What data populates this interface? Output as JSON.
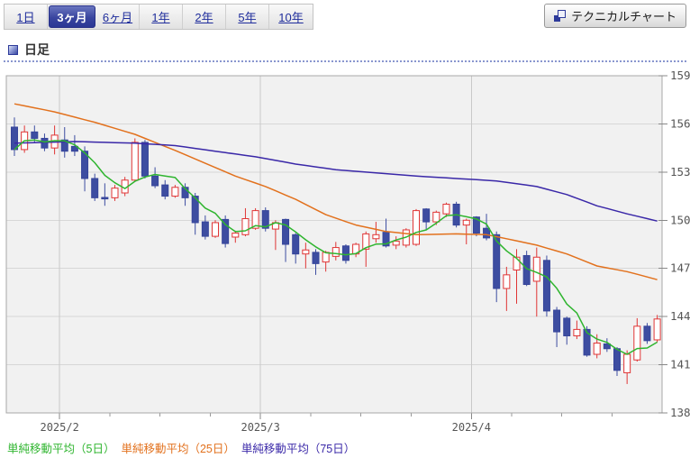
{
  "tabs": [
    {
      "label": "1日",
      "selected": false
    },
    {
      "label": "3ヶ月",
      "selected": true
    },
    {
      "label": "6ヶ月",
      "selected": false
    },
    {
      "label": "1年",
      "selected": false
    },
    {
      "label": "2年",
      "selected": false
    },
    {
      "label": "5年",
      "selected": false
    },
    {
      "label": "10年",
      "selected": false
    }
  ],
  "toolbar": {
    "technical_button_label": "テクニカルチャート"
  },
  "section": {
    "title": "日足"
  },
  "chart_data": {
    "type": "candlestick",
    "title": "",
    "ylim": [
      138,
      159
    ],
    "y_ticks": [
      138,
      141,
      144,
      147,
      150,
      153,
      156,
      159
    ],
    "grid": true,
    "x_axis_months": [
      {
        "label": "2025/2",
        "boundary_index": 5
      },
      {
        "label": "2025/3",
        "boundary_index": 25
      },
      {
        "label": "2025/4",
        "boundary_index": 46
      }
    ],
    "minor_tick_every": 5,
    "candles_ohlc": [
      [
        155.8,
        156.4,
        154.0,
        154.4
      ],
      [
        154.4,
        155.9,
        154.2,
        155.5
      ],
      [
        155.5,
        155.9,
        154.8,
        155.1
      ],
      [
        155.1,
        155.4,
        154.3,
        154.5
      ],
      [
        154.5,
        155.9,
        154.1,
        155.3
      ],
      [
        155.0,
        155.8,
        153.9,
        154.3
      ],
      [
        154.6,
        155.3,
        154.0,
        154.3
      ],
      [
        154.3,
        154.6,
        151.8,
        152.6
      ],
      [
        152.6,
        152.9,
        151.2,
        151.4
      ],
      [
        151.42,
        152.3,
        150.9,
        151.38
      ],
      [
        151.4,
        152.2,
        151.2,
        152.0
      ],
      [
        151.7,
        152.7,
        151.5,
        152.5
      ],
      [
        152.5,
        155.1,
        152.4,
        154.85
      ],
      [
        154.85,
        155.0,
        152.6,
        152.75
      ],
      [
        152.75,
        153.3,
        152.0,
        152.15
      ],
      [
        152.2,
        152.5,
        151.3,
        151.5
      ],
      [
        151.5,
        152.2,
        151.4,
        152.05
      ],
      [
        152.05,
        152.3,
        150.9,
        151.4
      ],
      [
        151.5,
        151.7,
        149.1,
        149.85
      ],
      [
        149.9,
        150.3,
        148.8,
        149.0
      ],
      [
        149.0,
        150.0,
        148.9,
        149.85
      ],
      [
        150.05,
        150.3,
        148.3,
        148.55
      ],
      [
        148.95,
        149.35,
        148.6,
        149.2
      ],
      [
        149.1,
        150.75,
        149.0,
        150.1
      ],
      [
        149.5,
        150.75,
        149.4,
        150.6
      ],
      [
        150.6,
        150.8,
        149.3,
        149.5
      ],
      [
        149.45,
        150.0,
        148.15,
        149.85
      ],
      [
        150.05,
        150.1,
        147.4,
        148.5
      ],
      [
        149.1,
        149.2,
        147.3,
        147.9
      ],
      [
        147.9,
        148.6,
        147.0,
        148.15
      ],
      [
        148.0,
        148.2,
        146.6,
        147.3
      ],
      [
        147.4,
        148.1,
        146.8,
        148.0
      ],
      [
        147.75,
        148.65,
        147.5,
        148.3
      ],
      [
        148.4,
        148.5,
        147.3,
        147.5
      ],
      [
        147.9,
        148.6,
        147.7,
        148.5
      ],
      [
        148.2,
        149.3,
        147.1,
        149.15
      ],
      [
        148.85,
        149.9,
        148.6,
        149.1
      ],
      [
        149.25,
        150.1,
        148.3,
        148.4
      ],
      [
        148.45,
        149.0,
        148.2,
        148.7
      ],
      [
        148.45,
        149.5,
        148.3,
        149.4
      ],
      [
        148.5,
        150.7,
        148.4,
        150.6
      ],
      [
        150.7,
        150.75,
        149.4,
        149.9
      ],
      [
        149.9,
        150.6,
        149.7,
        150.5
      ],
      [
        150.4,
        151.1,
        150.2,
        151.0
      ],
      [
        151.0,
        151.15,
        149.55,
        149.7
      ],
      [
        149.7,
        150.1,
        148.5,
        150.0
      ],
      [
        150.2,
        150.25,
        149.0,
        149.2
      ],
      [
        149.5,
        150.4,
        148.75,
        148.9
      ],
      [
        149.1,
        149.3,
        144.9,
        145.75
      ],
      [
        145.75,
        147.1,
        144.35,
        146.6
      ],
      [
        146.9,
        148.2,
        144.8,
        147.7
      ],
      [
        147.8,
        148.1,
        145.9,
        146.0
      ],
      [
        146.2,
        148.3,
        144.0,
        147.7
      ],
      [
        147.5,
        147.8,
        144.0,
        144.35
      ],
      [
        144.4,
        144.6,
        142.1,
        143.05
      ],
      [
        143.9,
        144.0,
        142.25,
        142.8
      ],
      [
        142.8,
        143.75,
        142.6,
        143.2
      ],
      [
        143.2,
        143.4,
        141.5,
        141.6
      ],
      [
        141.65,
        142.9,
        141.4,
        142.35
      ],
      [
        142.3,
        142.65,
        141.8,
        142.0
      ],
      [
        142.0,
        142.1,
        140.3,
        140.65
      ],
      [
        140.5,
        141.9,
        139.8,
        141.65
      ],
      [
        141.3,
        143.9,
        141.2,
        143.4
      ],
      [
        143.4,
        143.6,
        142.3,
        142.5
      ],
      [
        142.55,
        144.1,
        142.4,
        143.85
      ]
    ],
    "moving_averages": [
      {
        "name": "単純移動平均（5日）",
        "period": 5,
        "color": "#2fb52f",
        "compute_from_close": true
      },
      {
        "name": "単純移動平均（25日）",
        "period": 25,
        "color": "#e2711d",
        "anchors": [
          [
            0,
            157.25
          ],
          [
            4,
            156.75
          ],
          [
            8,
            156.1
          ],
          [
            12,
            155.35
          ],
          [
            16,
            154.35
          ],
          [
            19,
            153.55
          ],
          [
            22,
            152.75
          ],
          [
            25,
            152.1
          ],
          [
            28,
            151.3
          ],
          [
            31,
            150.35
          ],
          [
            34,
            149.7
          ],
          [
            37,
            149.3
          ],
          [
            40,
            149.1
          ],
          [
            44,
            149.15
          ],
          [
            47,
            149.1
          ],
          [
            49,
            148.85
          ],
          [
            52,
            148.45
          ],
          [
            55,
            147.9
          ],
          [
            58,
            147.15
          ],
          [
            61,
            146.8
          ],
          [
            64,
            146.3
          ]
        ]
      },
      {
        "name": "単純移動平均（75日）",
        "period": 75,
        "color": "#3a28a8",
        "anchors": [
          [
            0,
            154.8
          ],
          [
            6,
            154.9
          ],
          [
            12,
            154.8
          ],
          [
            16,
            154.65
          ],
          [
            20,
            154.3
          ],
          [
            24,
            153.95
          ],
          [
            28,
            153.5
          ],
          [
            32,
            153.15
          ],
          [
            36,
            152.95
          ],
          [
            40,
            152.75
          ],
          [
            44,
            152.6
          ],
          [
            48,
            152.45
          ],
          [
            52,
            152.1
          ],
          [
            55,
            151.6
          ],
          [
            58,
            150.9
          ],
          [
            61,
            150.4
          ],
          [
            64,
            149.95
          ]
        ]
      }
    ],
    "colors": {
      "up_candle_border": "#e03535",
      "up_candle_fill": "#ffffff",
      "down_candle_fill": "#3d4da1",
      "down_candle_border": "#36459a",
      "plot_background": "#f1f1f1",
      "gridline": "#d7d7d7",
      "month_gridline": "#c9c9c9",
      "plot_border": "#a8a8a8",
      "axis_text": "#555555"
    },
    "legend_position": "bottom-left"
  }
}
